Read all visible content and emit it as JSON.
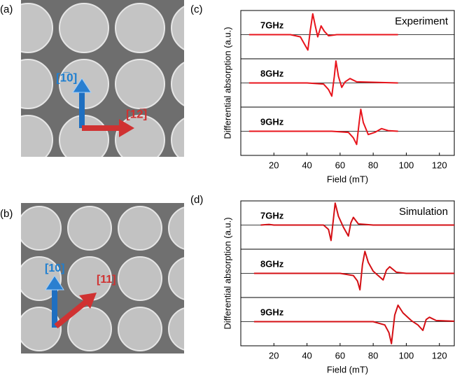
{
  "chart_data": [
    {
      "type": "line",
      "panel_label": "(c)",
      "annotation": "Experiment",
      "xlabel": "Field (mT)",
      "ylabel": "Differential absorption (a.u.)",
      "xlim": [
        0,
        129
      ],
      "xticks": [
        20,
        40,
        60,
        80,
        100,
        120
      ],
      "ylim": [
        -1.1,
        1.1
      ],
      "color": "#e8141c",
      "series": [
        {
          "name": "7GHz",
          "x": [
            5,
            30,
            36,
            39,
            40.5,
            42,
            43.5,
            45,
            46.5,
            48.5,
            50.5,
            53,
            58,
            95
          ],
          "values": [
            0,
            0,
            -0.1,
            -0.5,
            -0.7,
            0.2,
            0.95,
            0.4,
            -0.1,
            0.4,
            0.15,
            -0.05,
            0,
            0
          ]
        },
        {
          "name": "8GHz",
          "x": [
            5,
            40,
            50,
            53,
            55,
            56.5,
            57.5,
            59,
            61,
            63,
            66,
            70,
            95
          ],
          "values": [
            0,
            0,
            -0.05,
            -0.3,
            -0.6,
            0.3,
            1.0,
            0.3,
            -0.2,
            0.05,
            0.2,
            0.05,
            0
          ]
        },
        {
          "name": "9GHz",
          "x": [
            5,
            55,
            65,
            68,
            70,
            71.5,
            72.5,
            74,
            77,
            81,
            85,
            89,
            95
          ],
          "values": [
            0,
            0,
            -0.05,
            -0.3,
            -0.6,
            0.4,
            1.0,
            0.4,
            -0.15,
            -0.05,
            0.12,
            0.03,
            0
          ]
        }
      ]
    },
    {
      "type": "line",
      "panel_label": "(d)",
      "annotation": "Simulation",
      "xlabel": "Field (mT)",
      "ylabel": "Differential absorption (a.u.)",
      "xlim": [
        0,
        129
      ],
      "xticks": [
        20,
        40,
        60,
        80,
        100,
        120
      ],
      "ylim": [
        -1.1,
        1.1
      ],
      "color": "#d40f14",
      "series": [
        {
          "name": "7GHz",
          "x": [
            12,
            17,
            20,
            50,
            53,
            54.5,
            56,
            57,
            59,
            62,
            65,
            66.5,
            68,
            71,
            80,
            129
          ],
          "values": [
            0,
            0.03,
            0,
            0,
            -0.2,
            -0.7,
            0.3,
            1.0,
            0.4,
            -0.1,
            -0.5,
            0.1,
            0.35,
            0.05,
            0,
            0
          ]
        },
        {
          "name": "8GHz",
          "x": [
            8,
            60,
            68,
            70.5,
            72,
            73.5,
            75,
            77,
            80,
            83,
            86,
            88,
            90,
            94,
            100,
            129
          ],
          "values": [
            0,
            0,
            -0.1,
            -0.35,
            -0.75,
            0.4,
            1.0,
            0.5,
            0.1,
            -0.1,
            -0.3,
            0.15,
            0.3,
            0.05,
            0,
            0
          ]
        },
        {
          "name": "9GHz",
          "x": [
            8,
            80,
            87,
            89.5,
            91,
            93,
            95,
            98,
            103,
            107,
            110,
            112,
            114,
            118,
            129
          ],
          "values": [
            0,
            0,
            -0.15,
            -0.5,
            -1.0,
            0.3,
            0.75,
            0.4,
            0.05,
            -0.15,
            -0.4,
            0.1,
            0.2,
            0.05,
            0.02
          ]
        }
      ]
    }
  ],
  "images": [
    {
      "panel_label": "(a)",
      "blue_label": "[1̅0]",
      "red_label": "[12̅]"
    },
    {
      "panel_label": "(b)",
      "blue_label": "[10]",
      "red_label": "[11]"
    }
  ]
}
